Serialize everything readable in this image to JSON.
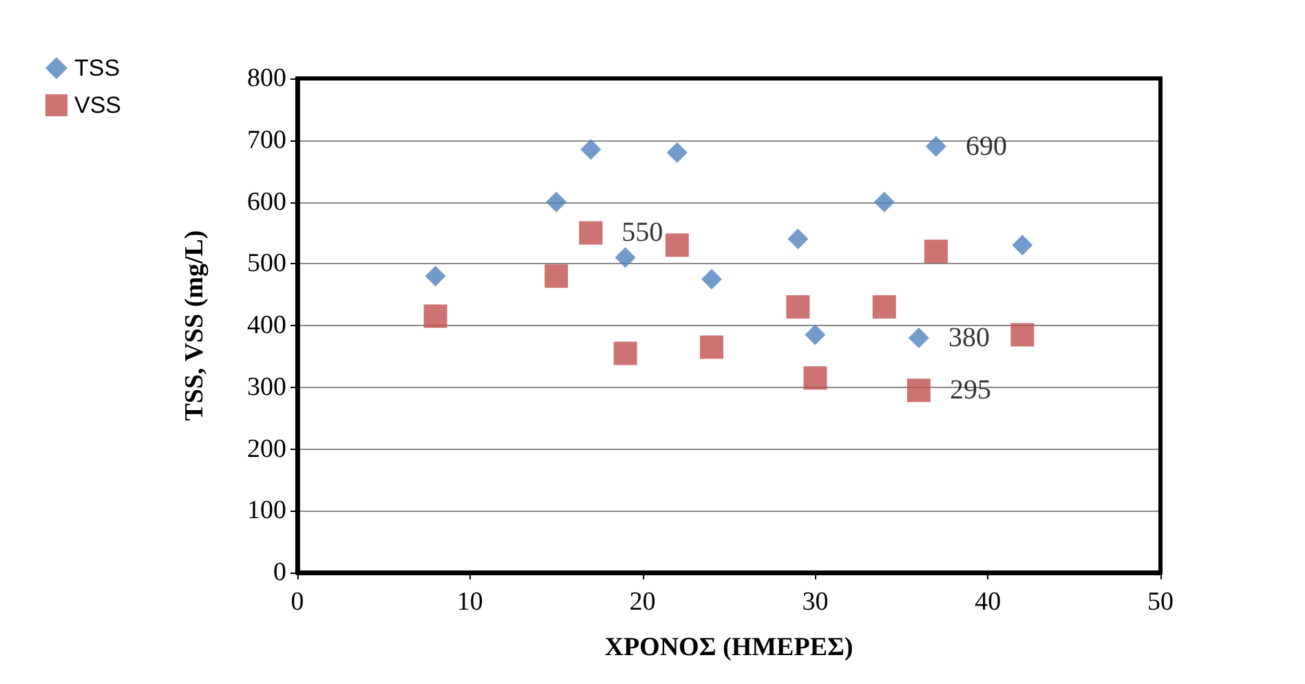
{
  "chart_data": {
    "type": "scatter",
    "xlabel": "ΧΡΟΝΟΣ (ΗΜΕΡΕΣ)",
    "ylabel": "TSS, VSS (mg/L)",
    "xlim": [
      0,
      50
    ],
    "xticks": [
      0,
      10,
      20,
      30,
      40,
      50
    ],
    "ylim": [
      0,
      800
    ],
    "yticks": [
      0,
      100,
      200,
      300,
      400,
      500,
      600,
      700,
      800
    ],
    "grid": "y",
    "legend": "top left",
    "series": [
      {
        "name": "TSS",
        "color": "#4f81bd",
        "marker": "diamond",
        "x": [
          8,
          15,
          17,
          19,
          22,
          24,
          29,
          30,
          34,
          36,
          37,
          42
        ],
        "values": [
          480,
          600,
          685,
          510,
          680,
          475,
          540,
          385,
          600,
          380,
          690,
          530
        ],
        "value_labels": [
          null,
          null,
          null,
          null,
          null,
          null,
          null,
          null,
          null,
          "380",
          "690",
          null
        ]
      },
      {
        "name": "VSS",
        "color": "#c0504d",
        "marker": "square",
        "x": [
          8,
          15,
          17,
          19,
          22,
          24,
          29,
          30,
          34,
          36,
          37,
          42
        ],
        "values": [
          415,
          480,
          550,
          355,
          530,
          365,
          430,
          315,
          430,
          295,
          520,
          385
        ],
        "value_labels": [
          null,
          null,
          "550",
          null,
          null,
          null,
          null,
          null,
          null,
          "295",
          null,
          null
        ]
      }
    ]
  }
}
